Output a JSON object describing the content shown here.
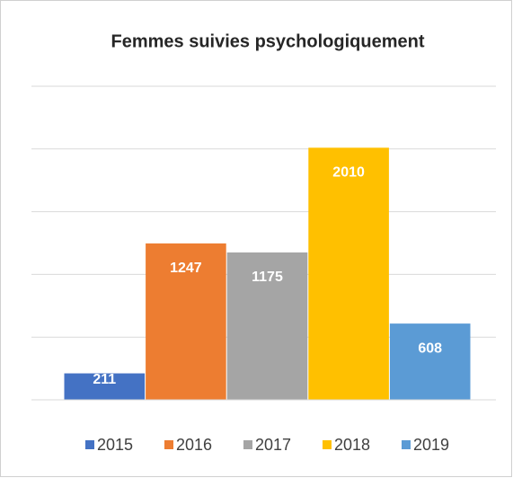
{
  "chart_data": {
    "type": "bar",
    "title": "Femmes suivies psychologiquement",
    "categories": [
      "2015",
      "2016",
      "2017",
      "2018",
      "2019"
    ],
    "values": [
      211,
      1247,
      1175,
      2010,
      608
    ],
    "colors": [
      "#4472c4",
      "#ed7d31",
      "#a5a5a5",
      "#ffc000",
      "#5b9bd5"
    ],
    "ylim": [
      0,
      2500
    ],
    "yticks": [
      0,
      500,
      1000,
      1500,
      2000,
      2500
    ],
    "grid": true
  }
}
